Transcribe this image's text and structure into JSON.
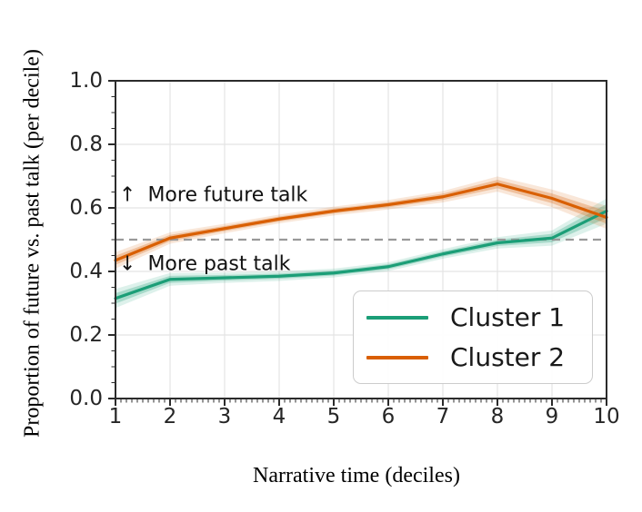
{
  "figure": {
    "background": "#ffffff",
    "spine_color": "#2b2b2b",
    "grid_color": "#e4e4e4",
    "text_color": "#1a1a1a"
  },
  "chart_data": {
    "type": "line",
    "title": "",
    "xlabel": "Narrative time (deciles)",
    "ylabel": "Proportion of future vs. past talk (per decile)",
    "x": [
      1,
      2,
      3,
      4,
      5,
      6,
      7,
      8,
      9,
      10
    ],
    "xtick_labels": [
      "1",
      "2",
      "3",
      "4",
      "5",
      "6",
      "7",
      "8",
      "9",
      "10"
    ],
    "ytick_values": [
      0.0,
      0.2,
      0.4,
      0.6,
      0.8,
      1.0
    ],
    "ytick_labels": [
      "0.0",
      "0.2",
      "0.4",
      "0.6",
      "0.8",
      "1.0"
    ],
    "xlim": [
      1,
      10
    ],
    "ylim": [
      0.0,
      1.0
    ],
    "grid": true,
    "legend_position": "lower right",
    "reference_line": {
      "value": 0.5,
      "style": "dashed",
      "color": "#999999"
    },
    "series": [
      {
        "name": "Cluster 1",
        "color": "#1b9e77",
        "values": [
          0.315,
          0.375,
          0.38,
          0.385,
          0.395,
          0.415,
          0.455,
          0.49,
          0.505,
          0.59
        ],
        "band_halfwidth": [
          0.03,
          0.02,
          0.016,
          0.015,
          0.014,
          0.014,
          0.015,
          0.018,
          0.024,
          0.04
        ]
      },
      {
        "name": "Cluster 2",
        "color": "#d95f02",
        "values": [
          0.435,
          0.505,
          0.535,
          0.565,
          0.59,
          0.61,
          0.635,
          0.675,
          0.63,
          0.57
        ],
        "band_halfwidth": [
          0.026,
          0.018,
          0.015,
          0.014,
          0.014,
          0.015,
          0.018,
          0.024,
          0.028,
          0.036
        ]
      }
    ],
    "annotations": [
      {
        "arrow": "↑",
        "text": "More future talk"
      },
      {
        "arrow": "↓",
        "text": "More past talk"
      }
    ]
  }
}
